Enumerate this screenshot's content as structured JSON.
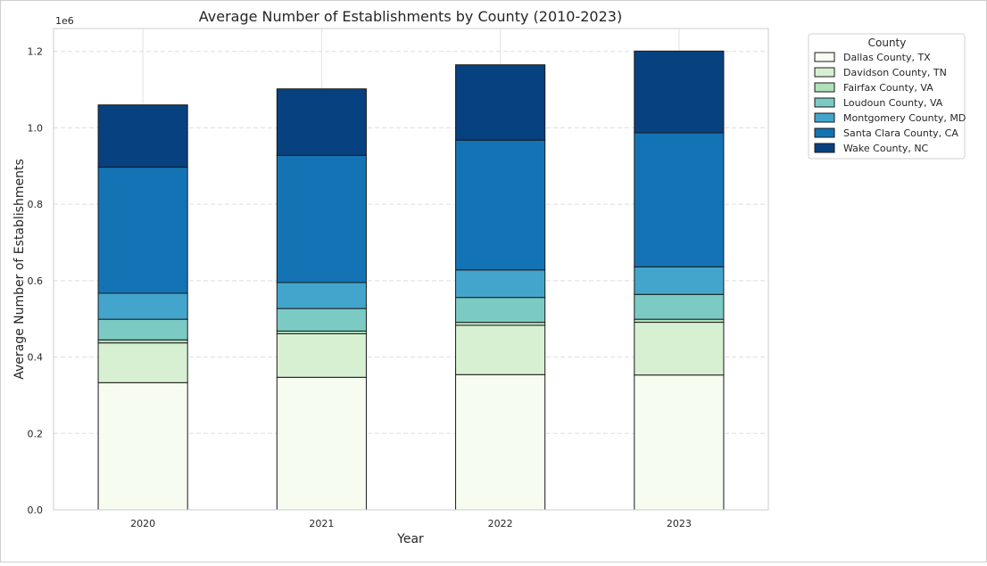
{
  "chart_data": {
    "type": "bar",
    "stacked": true,
    "title": "Average Number of Establishments by County (2010-2023)",
    "xlabel": "Year",
    "ylabel": "Average Number of Establishments",
    "y_offset_label": "1e6",
    "y_scale": 1000000,
    "ylim": [
      0,
      1260000
    ],
    "yticks": [
      0,
      200000,
      400000,
      600000,
      800000,
      1000000,
      1200000
    ],
    "ytick_labels": [
      "0.0",
      "0.2",
      "0.4",
      "0.6",
      "0.8",
      "1.0",
      "1.2"
    ],
    "grid": "horizontal-dashed",
    "categories": [
      "2020",
      "2021",
      "2022",
      "2023"
    ],
    "legend": {
      "title": "County",
      "placement": "outside-right-top"
    },
    "series": [
      {
        "name": "Dallas County, TX",
        "color": "#f7fcf0",
        "values": [
          333000,
          347000,
          354000,
          353000
        ]
      },
      {
        "name": "Davidson County, TN",
        "color": "#d8f0d2",
        "values": [
          104000,
          114000,
          129000,
          138000
        ]
      },
      {
        "name": "Fairfax County, VA",
        "color": "#b0e0ba",
        "values": [
          8000,
          7000,
          8000,
          8000
        ]
      },
      {
        "name": "Loudoun County, VA",
        "color": "#7bcbc4",
        "values": [
          54000,
          59000,
          65000,
          65000
        ]
      },
      {
        "name": "Montgomery County, MD",
        "color": "#43a5cc",
        "values": [
          68000,
          68000,
          72000,
          72000
        ]
      },
      {
        "name": "Santa Clara County, CA",
        "color": "#1373b4",
        "values": [
          330000,
          333000,
          340000,
          351000
        ]
      },
      {
        "name": "Wake County, NC",
        "color": "#08417f",
        "values": [
          163000,
          174000,
          197000,
          214000
        ]
      }
    ]
  }
}
